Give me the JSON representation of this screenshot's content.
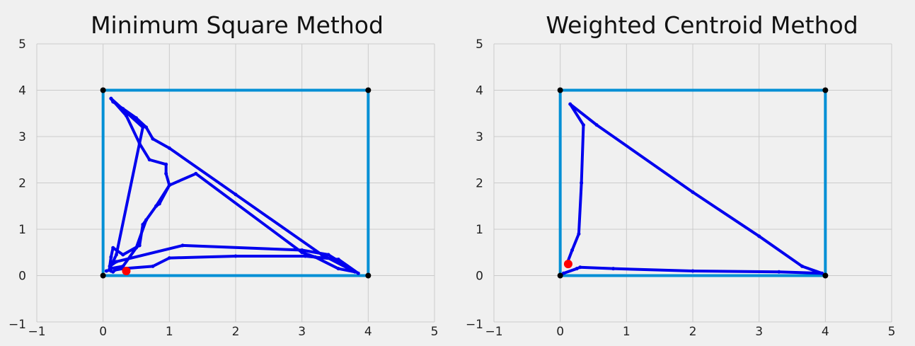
{
  "colors": {
    "background": "#f0f0f0",
    "grid": "#cbcbcb",
    "boundary": "#008fd5",
    "path": "#0000ee",
    "estimate": "#ff0000",
    "anchor": "#000000"
  },
  "chart_data": [
    {
      "type": "line",
      "title": "Minimum Square Method",
      "xlabel": "",
      "ylabel": "",
      "xlim": [
        -1,
        5
      ],
      "ylim": [
        -1,
        5
      ],
      "xticks": [
        -1,
        0,
        1,
        2,
        3,
        4,
        5
      ],
      "yticks": [
        -1,
        0,
        1,
        2,
        3,
        4,
        5
      ],
      "grid": true,
      "boundary": {
        "x": [
          0,
          4,
          4,
          0,
          0
        ],
        "y": [
          0,
          0,
          4,
          4,
          0
        ]
      },
      "anchors": {
        "x": [
          0,
          4,
          4,
          0
        ],
        "y": [
          0,
          0,
          4,
          4
        ]
      },
      "path": {
        "x": [
          0.05,
          0.1,
          0.12,
          0.15,
          0.18,
          0.3,
          0.75,
          1.0,
          2.0,
          3.05,
          3.55,
          3.85,
          3.4,
          3.0,
          1.2,
          0.2,
          0.1,
          0.12,
          0.15,
          0.3,
          0.55,
          0.6,
          0.8,
          0.85,
          1.0,
          0.95,
          0.95,
          0.7,
          0.55,
          0.35,
          0.12,
          0.6,
          0.2,
          0.1,
          0.3,
          0.5,
          0.65,
          0.8,
          1.0,
          1.4,
          3.0,
          3.2,
          3.55,
          3.8,
          3.3,
          2.0,
          1.0,
          0.75,
          0.65,
          0.5,
          0.3,
          0.15,
          0.12
        ],
        "y": [
          0.1,
          0.12,
          0.1,
          0.08,
          0.12,
          0.15,
          0.2,
          0.38,
          0.42,
          0.42,
          0.35,
          0.05,
          0.45,
          0.55,
          0.65,
          0.3,
          0.2,
          0.4,
          0.6,
          0.45,
          0.65,
          1.1,
          1.5,
          1.55,
          1.95,
          2.2,
          2.4,
          2.5,
          2.85,
          3.45,
          3.82,
          3.2,
          0.45,
          0.15,
          0.2,
          0.6,
          1.2,
          1.5,
          1.95,
          2.2,
          0.5,
          0.4,
          0.15,
          0.08,
          0.45,
          1.75,
          2.75,
          2.95,
          3.2,
          3.4,
          3.6,
          3.75,
          3.82
        ]
      },
      "estimate": {
        "x": 0.35,
        "y": 0.1
      }
    },
    {
      "type": "line",
      "title": "Weighted Centroid Method",
      "xlabel": "",
      "ylabel": "",
      "xlim": [
        -1,
        5
      ],
      "ylim": [
        -1,
        5
      ],
      "xticks": [
        -1,
        0,
        1,
        2,
        3,
        4,
        5
      ],
      "yticks": [
        -1,
        0,
        1,
        2,
        3,
        4,
        5
      ],
      "grid": true,
      "boundary": {
        "x": [
          0,
          4,
          4,
          0,
          0
        ],
        "y": [
          0,
          0,
          4,
          4,
          0
        ]
      },
      "anchors": {
        "x": [
          0,
          4,
          4,
          0
        ],
        "y": [
          0,
          0,
          4,
          4
        ]
      },
      "path": {
        "x": [
          0.05,
          0.25,
          0.3,
          0.8,
          2.0,
          3.3,
          3.95,
          3.65,
          3.0,
          2.0,
          0.55,
          0.15,
          0.35,
          0.32,
          0.28,
          0.18,
          0.1
        ],
        "y": [
          0.05,
          0.15,
          0.18,
          0.15,
          0.1,
          0.08,
          0.05,
          0.2,
          0.85,
          1.8,
          3.25,
          3.7,
          3.25,
          2.0,
          0.9,
          0.55,
          0.25
        ]
      },
      "estimate": {
        "x": 0.12,
        "y": 0.25
      }
    }
  ]
}
